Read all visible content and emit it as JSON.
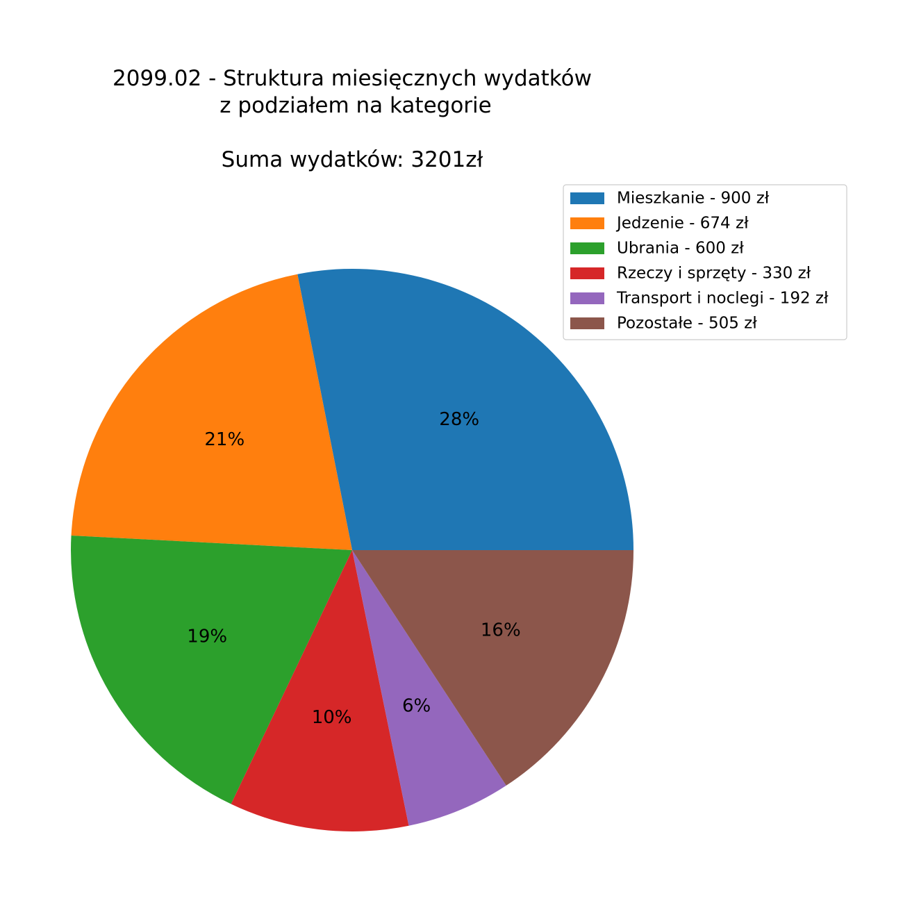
{
  "chart_data": {
    "type": "pie",
    "title_lines": [
      "2099.02 - Struktura miesięcznych wydatków",
      "z podziałem na kategorie",
      "Suma wydatków: 3201zł"
    ],
    "start_angle_deg": 0,
    "direction": "counterclockwise",
    "legend_position": "top-right",
    "slices": [
      {
        "label": "Mieszkanie - 900 zł",
        "value": 900,
        "pct_label": "28%",
        "color": "#1f77b4"
      },
      {
        "label": "Jedzenie - 674 zł",
        "value": 674,
        "pct_label": "21%",
        "color": "#ff7f0e"
      },
      {
        "label": "Ubrania - 600 zł",
        "value": 600,
        "pct_label": "19%",
        "color": "#2ca02c"
      },
      {
        "label": "Rzeczy i sprzęty - 330 zł",
        "value": 330,
        "pct_label": "10%",
        "color": "#d62728"
      },
      {
        "label": "Transport i noclegi - 192 zł",
        "value": 192,
        "pct_label": "6%",
        "color": "#9467bd"
      },
      {
        "label": "Pozostałe - 505 zł",
        "value": 505,
        "pct_label": "16%",
        "color": "#8c564b"
      }
    ]
  }
}
